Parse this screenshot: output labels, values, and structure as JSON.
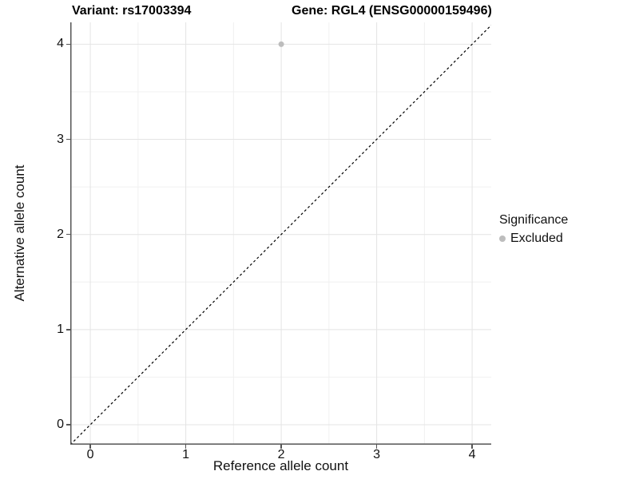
{
  "legend": {
    "title": "Significance",
    "items": [
      {
        "label": "Excluded",
        "color": "#bdbdbd"
      }
    ]
  },
  "colors": {
    "background": "#ffffff",
    "axis_line": "#555555",
    "axis_text": "#111111",
    "grid_major": "#e4e4e4",
    "grid_minor": "#f0f0f0",
    "point": "#bdbdbd",
    "reference_line": "#000000"
  },
  "chart_data": {
    "type": "scatter",
    "title_left": "Variant: rs17003394",
    "title_right": "Gene: RGL4 (ENSG00000159496)",
    "xlabel": "Reference allele count",
    "ylabel": "Alternative allele count",
    "xlim": [
      -0.21,
      4.2
    ],
    "ylim": [
      -0.21,
      4.23
    ],
    "xticks": [
      0,
      1,
      2,
      3,
      4
    ],
    "yticks": [
      0,
      1,
      2,
      3,
      4
    ],
    "xticks_minor": [
      0.5,
      1.5,
      2.5,
      3.5
    ],
    "yticks_minor": [
      0.5,
      1.5,
      2.5,
      3.5
    ],
    "grid": true,
    "legend_position": "right",
    "series": [
      {
        "name": "Excluded",
        "color": "#bdbdbd",
        "points": [
          {
            "x": 2,
            "y": 4
          }
        ]
      }
    ],
    "reference_line": {
      "type": "identity",
      "slope": 1,
      "intercept": 0,
      "style": "dashed",
      "color": "#000000"
    }
  }
}
